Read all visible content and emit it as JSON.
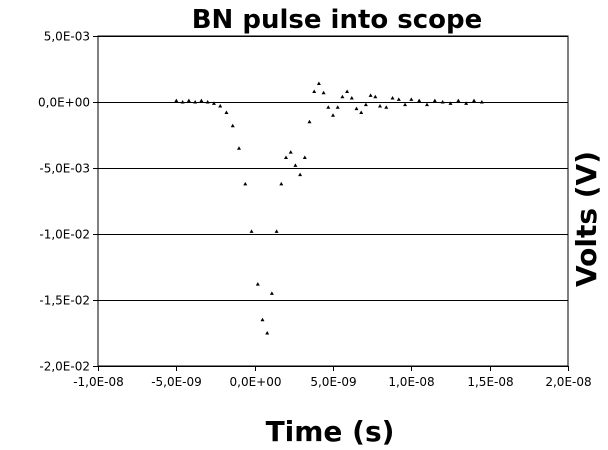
{
  "chart_data": {
    "type": "scatter",
    "title": "BN pulse into scope",
    "xlabel": "Time (s)",
    "ylabel": "Volts (V)",
    "xlim": [
      -1e-08,
      2e-08
    ],
    "ylim": [
      -0.02,
      0.005
    ],
    "x_ticks": [
      -1e-08,
      -5e-09,
      0,
      5e-09,
      1e-08,
      1.5e-08,
      2e-08
    ],
    "x_tick_labels": [
      "-1,0E-08",
      "-5,0E-09",
      "0,0E+00",
      "5,0E-09",
      "1,0E-08",
      "1,5E-08",
      "2,0E-08"
    ],
    "y_ticks": [
      0.005,
      0,
      -0.005,
      -0.01,
      -0.015,
      -0.02
    ],
    "y_tick_labels": [
      "5,0E-03",
      "0,0E+00",
      "-5,0E-03",
      "-1,0E-02",
      "-1,5E-02",
      "-2,0E-02"
    ],
    "grid": "horizontal",
    "marker": "triangle",
    "series": [
      {
        "points": [
          [
            -5e-09,
            0.0001
          ],
          [
            -4.6e-09,
            0.0
          ],
          [
            -4.2e-09,
            0.0001
          ],
          [
            -3.8e-09,
            0.0
          ],
          [
            -3.4e-09,
            0.0001
          ],
          [
            -3e-09,
            0.0
          ],
          [
            -2.6e-09,
            -0.0001
          ],
          [
            -2.2e-09,
            -0.0003
          ],
          [
            -1.8e-09,
            -0.0008
          ],
          [
            -1.4e-09,
            -0.0018
          ],
          [
            -1e-09,
            -0.0035
          ],
          [
            -6e-10,
            -0.0062
          ],
          [
            -2e-10,
            -0.0098
          ],
          [
            2e-10,
            -0.0138
          ],
          [
            5e-10,
            -0.0165
          ],
          [
            8e-10,
            -0.0175
          ],
          [
            1.1e-09,
            -0.0145
          ],
          [
            1.4e-09,
            -0.0098
          ],
          [
            1.7e-09,
            -0.0062
          ],
          [
            2e-09,
            -0.0042
          ],
          [
            2.3e-09,
            -0.0038
          ],
          [
            2.6e-09,
            -0.0048
          ],
          [
            2.9e-09,
            -0.0055
          ],
          [
            3.2e-09,
            -0.0042
          ],
          [
            3.5e-09,
            -0.0015
          ],
          [
            3.8e-09,
            0.0008
          ],
          [
            4.1e-09,
            0.0014
          ],
          [
            4.4e-09,
            0.0007
          ],
          [
            4.7e-09,
            -0.0004
          ],
          [
            5e-09,
            -0.001
          ],
          [
            5.3e-09,
            -0.0004
          ],
          [
            5.6e-09,
            0.0004
          ],
          [
            5.9e-09,
            0.0008
          ],
          [
            6.2e-09,
            0.0003
          ],
          [
            6.5e-09,
            -0.0005
          ],
          [
            6.8e-09,
            -0.0008
          ],
          [
            7.1e-09,
            -0.0002
          ],
          [
            7.4e-09,
            0.0005
          ],
          [
            7.7e-09,
            0.0004
          ],
          [
            8e-09,
            -0.0003
          ],
          [
            8.4e-09,
            -0.0004
          ],
          [
            8.8e-09,
            0.0003
          ],
          [
            9.2e-09,
            0.0002
          ],
          [
            9.6e-09,
            -0.0002
          ],
          [
            1e-08,
            0.0002
          ],
          [
            1.05e-08,
            0.0001
          ],
          [
            1.1e-08,
            -0.0002
          ],
          [
            1.15e-08,
            0.0001
          ],
          [
            1.2e-08,
            0.0
          ],
          [
            1.25e-08,
            -0.0001
          ],
          [
            1.3e-08,
            0.0001
          ],
          [
            1.35e-08,
            -0.0001
          ],
          [
            1.4e-08,
            0.0001
          ],
          [
            1.45e-08,
            0.0
          ]
        ]
      }
    ]
  }
}
